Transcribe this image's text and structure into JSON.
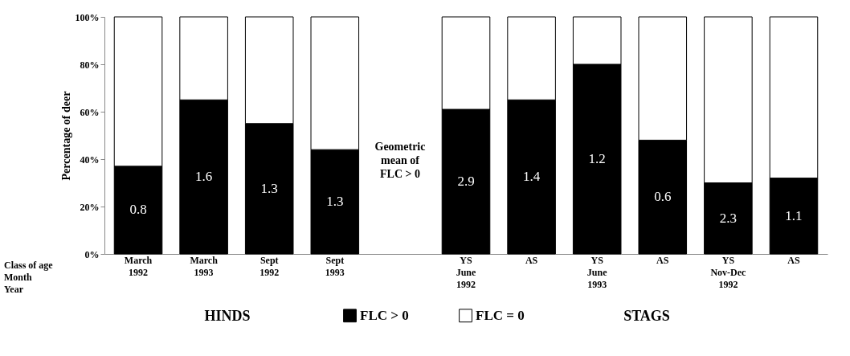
{
  "chart_data": {
    "type": "bar",
    "stacked": true,
    "ylabel": "Percentage of deer",
    "categories": [
      "March 1992",
      "March 1993",
      "Sept 1992",
      "Sept 1993",
      null,
      "YS June 1992",
      "AS",
      "YS June 1993",
      "AS",
      "YS Nov-Dec 1992",
      "AS"
    ],
    "series": [
      {
        "name": "FLC > 0",
        "color": "#000000",
        "values": [
          37,
          65,
          55,
          44,
          null,
          61,
          65,
          80,
          48,
          30,
          32
        ]
      },
      {
        "name": "FLC = 0",
        "color": "#ffffff",
        "values": [
          63,
          35,
          45,
          56,
          null,
          39,
          35,
          20,
          52,
          70,
          68
        ]
      }
    ],
    "ylim": [
      0,
      100
    ],
    "yticks": [
      {
        "value": 0,
        "label": "0%"
      },
      {
        "value": 20,
        "label": "20%"
      },
      {
        "value": 40,
        "label": "40%"
      },
      {
        "value": 60,
        "label": "60%"
      },
      {
        "value": 80,
        "label": "80%"
      },
      {
        "value": 100,
        "label": "100%"
      }
    ],
    "grid": false,
    "legend": "bottom",
    "annotations": [
      "Geometric mean of FLC > 0",
      "Class of age",
      "Month",
      "Year",
      "HINDS",
      "STAGS",
      "0.8",
      "1.6",
      "1.3",
      "1.3",
      "2.9",
      "1.4",
      "1.2",
      "0.6",
      "2.3",
      "1.1"
    ]
  }
}
